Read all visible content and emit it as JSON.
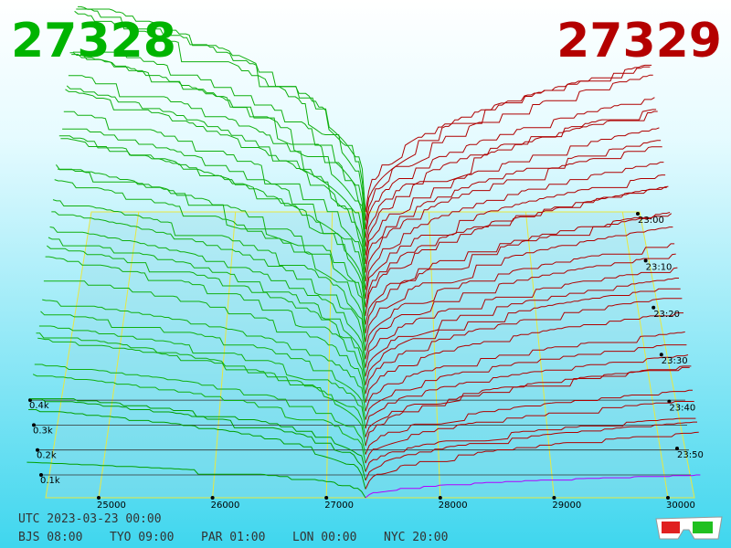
{
  "header": {
    "bid": "27328",
    "ask": "27329"
  },
  "price_axis": {
    "ticks": [
      "25000",
      "26000",
      "27000",
      "28000",
      "29000",
      "30000"
    ]
  },
  "depth_axis": {
    "ticks": [
      "0.1k",
      "0.2k",
      "0.3k",
      "0.4k"
    ]
  },
  "time_axis": {
    "ticks": [
      "23:00",
      "23:10",
      "23:20",
      "23:30",
      "23:40",
      "23:50"
    ]
  },
  "clock": {
    "utc": "UTC 2023-03-23 00:00",
    "zones": [
      "BJS 08:00",
      "TYO 09:00",
      "PAR 01:00",
      "LON 00:00",
      "NYC 20:00"
    ]
  }
}
